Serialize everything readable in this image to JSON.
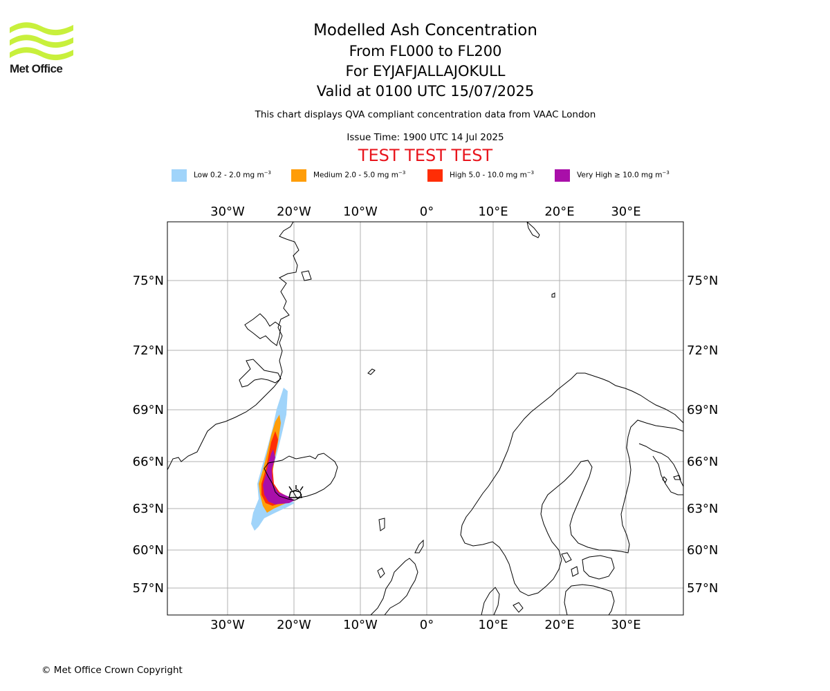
{
  "logo": {
    "brand": "Met Office",
    "color": "#c8f03c"
  },
  "title": {
    "line1": "Modelled Ash Concentration",
    "line2": "From FL000 to FL200",
    "line3": "For EYJAFJALLAJOKULL",
    "line4": "Valid at 0100 UTC 15/07/2025"
  },
  "subtitle": "This chart displays QVA compliant concentration data from VAAC London",
  "issue_time": "Issue Time: 1900 UTC 14 Jul 2025",
  "test_banner": "TEST TEST TEST",
  "legend": [
    {
      "label": "Low 0.2 - 2.0 mg m",
      "unit_exp": "−3",
      "color": "#a0d4fa"
    },
    {
      "label": "Medium 2.0 - 5.0 mg m",
      "unit_exp": "−3",
      "color": "#ff9d08"
    },
    {
      "label": "High 5.0 - 10.0 mg m",
      "unit_exp": "−3",
      "color": "#ff2d05"
    },
    {
      "label": "Very High  ≥  10.0 mg m",
      "unit_exp": "−3",
      "color": "#a90fa9"
    }
  ],
  "map": {
    "lon_labels": [
      "30°W",
      "20°W",
      "10°W",
      "0°",
      "10°E",
      "20°E",
      "30°E"
    ],
    "lat_labels": [
      "75°N",
      "72°N",
      "69°N",
      "66°N",
      "63°N",
      "60°N",
      "57°N"
    ]
  },
  "copyright": "© Met Office Crown Copyright"
}
